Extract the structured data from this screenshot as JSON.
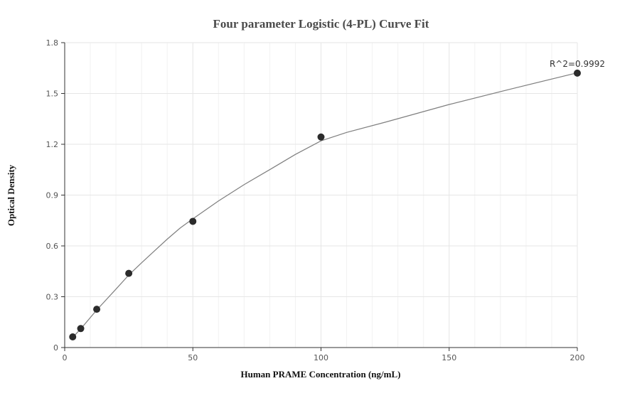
{
  "chart_data": {
    "type": "scatter",
    "title": "Four parameter Logistic (4-PL) Curve Fit",
    "xlabel": "Human PRAME Concentration (ng/mL)",
    "ylabel": "Optical Density",
    "xlim": [
      0,
      200
    ],
    "ylim": [
      0,
      1.8
    ],
    "x_ticks": [
      0,
      50,
      100,
      150,
      200
    ],
    "y_ticks": [
      0,
      0.3,
      0.6,
      0.9,
      1.2,
      1.5,
      1.8
    ],
    "x_tick_labels": [
      "0",
      "50",
      "100",
      "150",
      "200"
    ],
    "y_tick_labels": [
      "0",
      "0.3",
      "0.6",
      "0.9",
      "1.2",
      "1.5",
      "1.8"
    ],
    "grid": true,
    "series": [
      {
        "points": [
          {
            "x": 3.125,
            "y": 0.063
          },
          {
            "x": 6.25,
            "y": 0.112
          },
          {
            "x": 12.5,
            "y": 0.226
          },
          {
            "x": 25,
            "y": 0.438
          },
          {
            "x": 50,
            "y": 0.745
          },
          {
            "x": 100,
            "y": 1.243
          },
          {
            "x": 200,
            "y": 1.62
          }
        ]
      }
    ],
    "fit_curve": [
      {
        "x": 3.125,
        "y": 0.06
      },
      {
        "x": 6.25,
        "y": 0.11
      },
      {
        "x": 12.5,
        "y": 0.222
      },
      {
        "x": 20,
        "y": 0.345
      },
      {
        "x": 25,
        "y": 0.428
      },
      {
        "x": 30,
        "y": 0.5
      },
      {
        "x": 35,
        "y": 0.57
      },
      {
        "x": 40,
        "y": 0.64
      },
      {
        "x": 45,
        "y": 0.705
      },
      {
        "x": 50,
        "y": 0.76
      },
      {
        "x": 60,
        "y": 0.865
      },
      {
        "x": 70,
        "y": 0.962
      },
      {
        "x": 80,
        "y": 1.05
      },
      {
        "x": 90,
        "y": 1.14
      },
      {
        "x": 100,
        "y": 1.22
      },
      {
        "x": 110,
        "y": 1.27
      },
      {
        "x": 125,
        "y": 1.33
      },
      {
        "x": 150,
        "y": 1.435
      },
      {
        "x": 175,
        "y": 1.53
      },
      {
        "x": 200,
        "y": 1.622
      }
    ],
    "annotation": "R^2=0.9992",
    "colors": {
      "point": "#2b2b2b",
      "curve": "#7f7f7f",
      "grid": "#e6e6e6",
      "minor_grid": "#f2f2f2",
      "axis": "#333333"
    }
  }
}
